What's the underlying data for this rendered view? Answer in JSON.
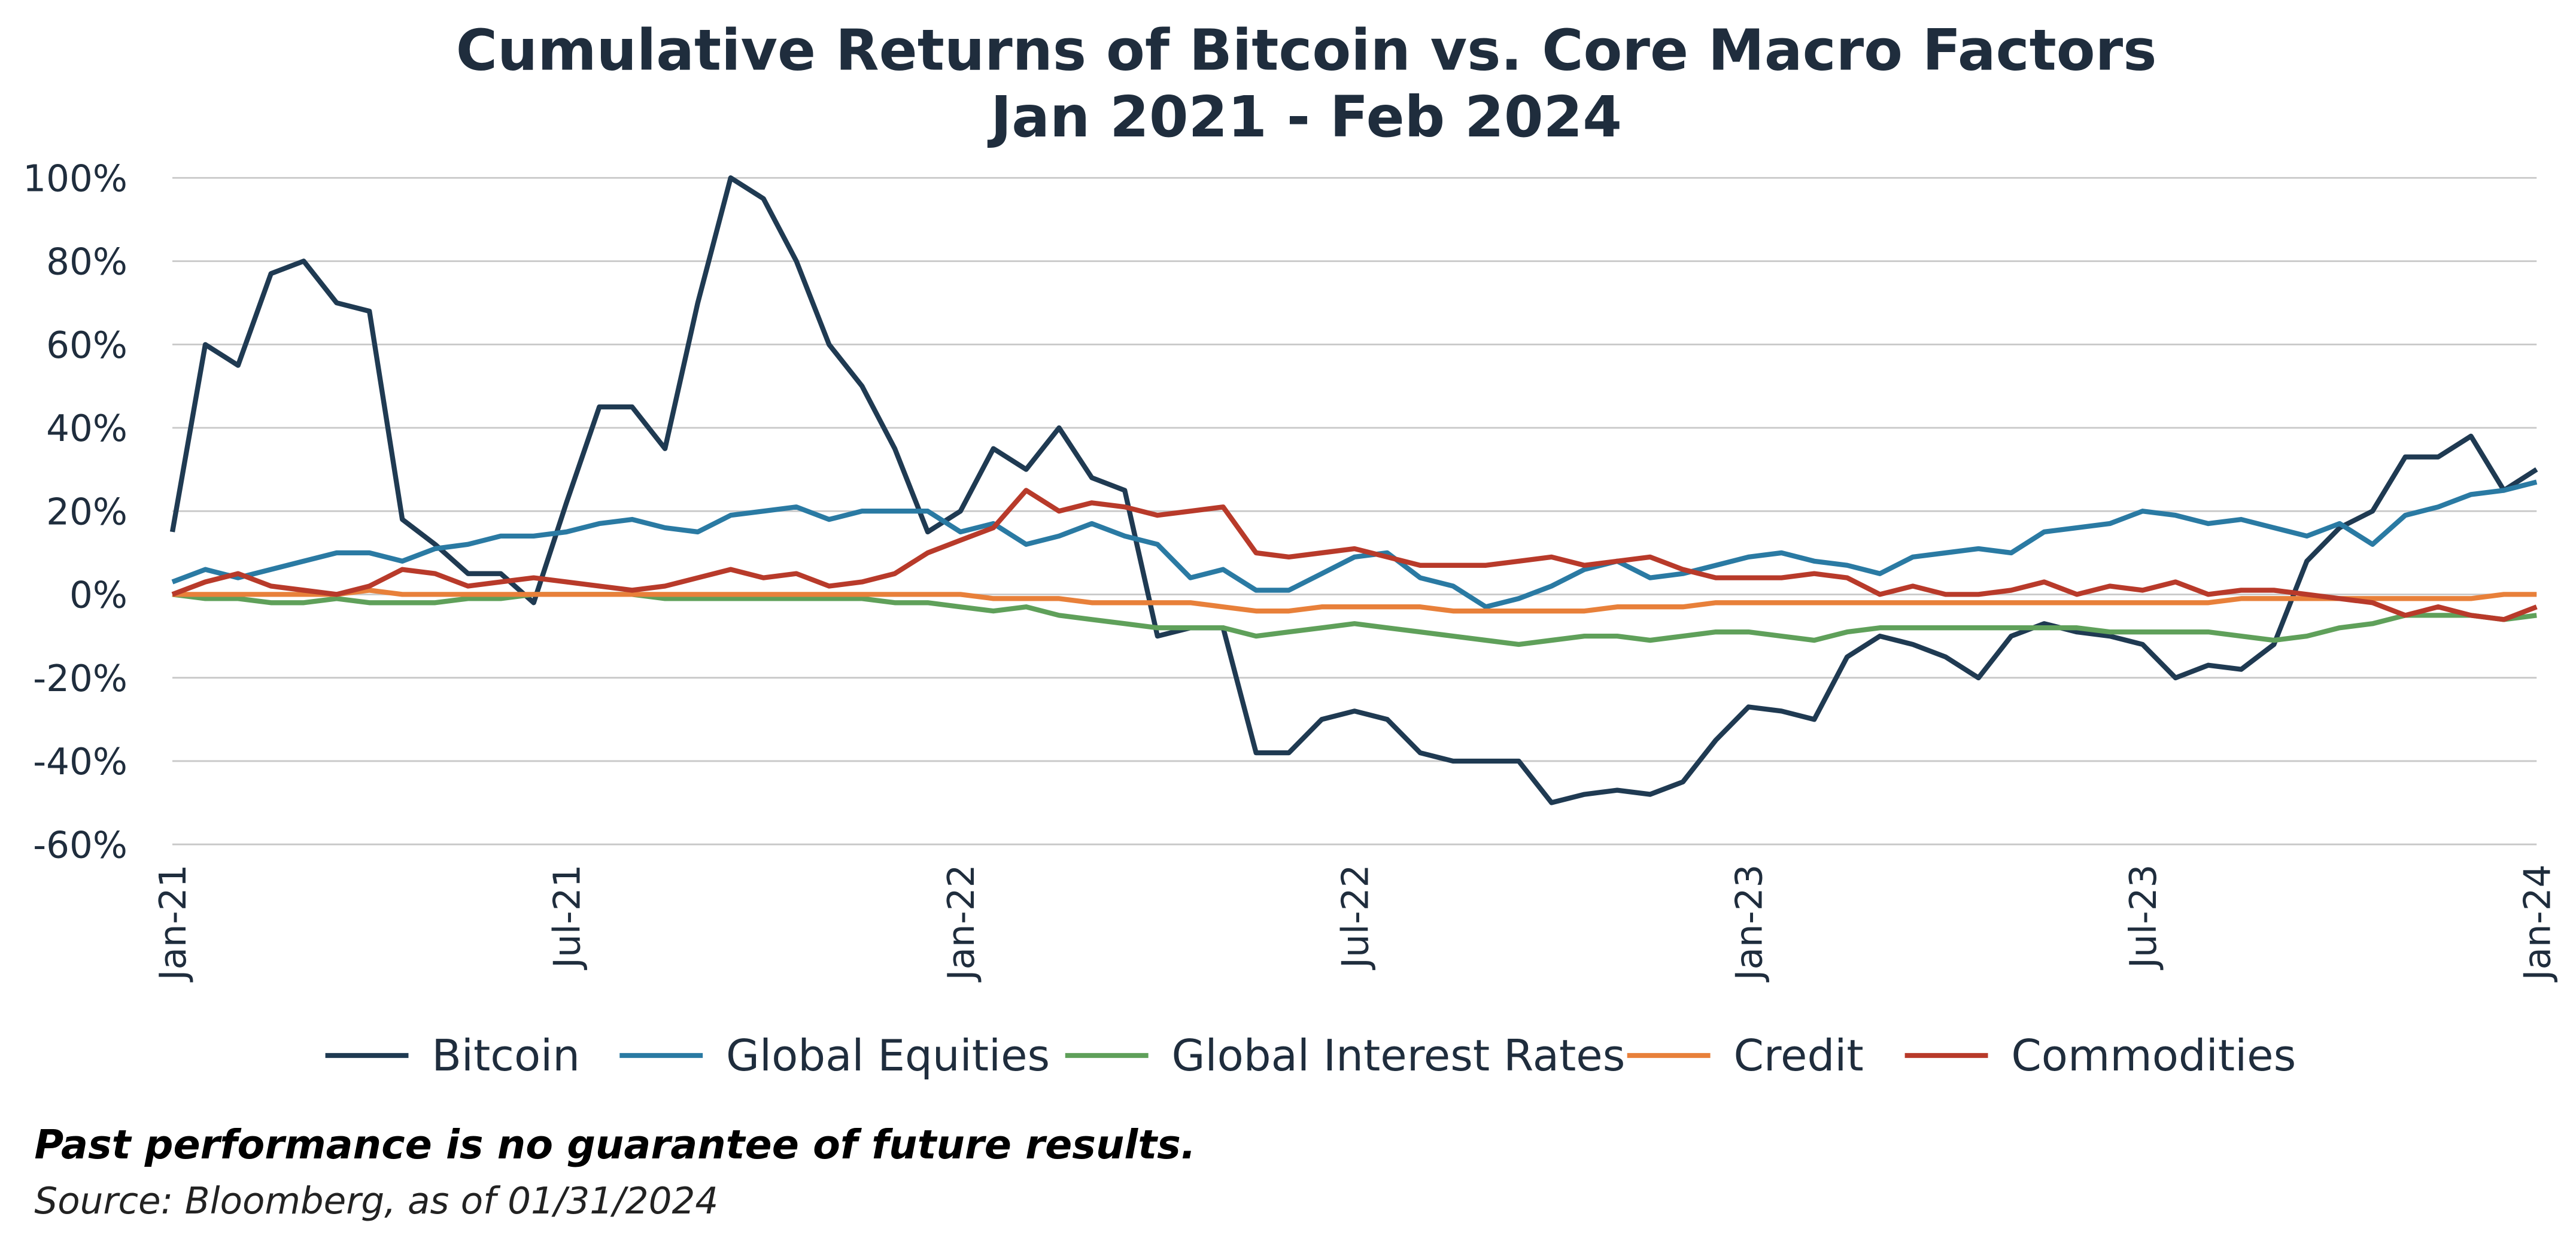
{
  "chart_data": {
    "type": "line",
    "title": "Cumulative Returns of Bitcoin vs. Core Macro Factors",
    "subtitle": "Jan 2021 - Feb 2024",
    "categories": [
      "Jan-21",
      null,
      null,
      null,
      null,
      null,
      null,
      null,
      null,
      null,
      null,
      null,
      "Jul-21",
      null,
      null,
      null,
      null,
      null,
      null,
      null,
      null,
      null,
      null,
      null,
      "Jan-22",
      null,
      null,
      null,
      null,
      null,
      null,
      null,
      null,
      null,
      null,
      null,
      "Jul-22",
      null,
      null,
      null,
      null,
      null,
      null,
      null,
      null,
      null,
      null,
      null,
      "Jan-23",
      null,
      null,
      null,
      null,
      null,
      null,
      null,
      null,
      null,
      null,
      null,
      "Jul-23",
      null,
      null,
      null,
      null,
      null,
      null,
      null,
      null,
      null,
      null,
      null,
      "Jan-24"
    ],
    "series": [
      {
        "name": "Bitcoin",
        "color": "#1f3a52",
        "values": [
          15,
          60,
          55,
          77,
          80,
          70,
          68,
          18,
          12,
          5,
          5,
          -2,
          22,
          45,
          45,
          35,
          70,
          100,
          95,
          80,
          60,
          50,
          35,
          15,
          20,
          35,
          30,
          40,
          28,
          25,
          -10,
          -8,
          -8,
          -38,
          -38,
          -30,
          -28,
          -30,
          -38,
          -40,
          -40,
          -40,
          -50,
          -48,
          -47,
          -48,
          -45,
          -35,
          -27,
          -28,
          -30,
          -15,
          -10,
          -12,
          -15,
          -20,
          -10,
          -7,
          -9,
          -10,
          -12,
          -20,
          -17,
          -18,
          -12,
          8,
          16,
          20,
          33,
          33,
          38,
          25,
          30
        ]
      },
      {
        "name": "Global Equities",
        "color": "#2a7aa3",
        "values": [
          3,
          6,
          4,
          6,
          8,
          10,
          10,
          8,
          11,
          12,
          14,
          14,
          15,
          17,
          18,
          16,
          15,
          19,
          20,
          21,
          18,
          20,
          20,
          20,
          15,
          17,
          12,
          14,
          17,
          14,
          12,
          4,
          6,
          1,
          1,
          5,
          9,
          10,
          4,
          2,
          -3,
          -1,
          2,
          6,
          8,
          4,
          5,
          7,
          9,
          10,
          8,
          7,
          5,
          9,
          10,
          11,
          10,
          15,
          16,
          17,
          20,
          19,
          17,
          18,
          16,
          14,
          17,
          12,
          19,
          21,
          24,
          25,
          27
        ]
      },
      {
        "name": "Global Interest Rates",
        "color": "#5fa05a",
        "values": [
          0,
          -1,
          -1,
          -2,
          -2,
          -1,
          -2,
          -2,
          -2,
          -1,
          -1,
          0,
          0,
          0,
          0,
          -1,
          -1,
          -1,
          -1,
          -1,
          -1,
          -1,
          -2,
          -2,
          -3,
          -4,
          -3,
          -5,
          -6,
          -7,
          -8,
          -8,
          -8,
          -10,
          -9,
          -8,
          -7,
          -8,
          -9,
          -10,
          -11,
          -12,
          -11,
          -10,
          -10,
          -11,
          -10,
          -9,
          -9,
          -10,
          -11,
          -9,
          -8,
          -8,
          -8,
          -8,
          -8,
          -8,
          -8,
          -9,
          -9,
          -9,
          -9,
          -10,
          -11,
          -10,
          -8,
          -7,
          -5,
          -5,
          -5,
          -6,
          -5
        ]
      },
      {
        "name": "Credit",
        "color": "#e8803a",
        "values": [
          0,
          0,
          0,
          0,
          0,
          0,
          1,
          0,
          0,
          0,
          0,
          0,
          0,
          0,
          0,
          0,
          0,
          0,
          0,
          0,
          0,
          0,
          0,
          0,
          0,
          -1,
          -1,
          -1,
          -2,
          -2,
          -2,
          -2,
          -3,
          -4,
          -4,
          -3,
          -3,
          -3,
          -3,
          -4,
          -4,
          -4,
          -4,
          -4,
          -3,
          -3,
          -3,
          -2,
          -2,
          -2,
          -2,
          -2,
          -2,
          -2,
          -2,
          -2,
          -2,
          -2,
          -2,
          -2,
          -2,
          -2,
          -2,
          -1,
          -1,
          -1,
          -1,
          -1,
          -1,
          -1,
          -1,
          0,
          0
        ]
      },
      {
        "name": "Commodities",
        "color": "#b83a2a",
        "values": [
          0,
          3,
          5,
          2,
          1,
          0,
          2,
          6,
          5,
          2,
          3,
          4,
          3,
          2,
          1,
          2,
          4,
          6,
          4,
          5,
          2,
          3,
          5,
          10,
          13,
          16,
          25,
          20,
          22,
          21,
          19,
          20,
          21,
          10,
          9,
          10,
          11,
          9,
          7,
          7,
          7,
          8,
          9,
          7,
          8,
          9,
          6,
          4,
          4,
          4,
          5,
          4,
          0,
          2,
          0,
          0,
          1,
          3,
          0,
          2,
          1,
          3,
          0,
          1,
          1,
          0,
          -1,
          -2,
          -5,
          -3,
          -5,
          -6,
          -3
        ]
      }
    ],
    "ylim": [
      -60,
      100
    ],
    "yticks": [
      {
        "value": -60,
        "label": "-60%"
      },
      {
        "value": -40,
        "label": "-40%"
      },
      {
        "value": -20,
        "label": "-20%"
      },
      {
        "value": 0,
        "label": "0%"
      },
      {
        "value": 20,
        "label": "20%"
      },
      {
        "value": 40,
        "label": "40%"
      },
      {
        "value": 60,
        "label": "60%"
      },
      {
        "value": 80,
        "label": "80%"
      },
      {
        "value": 100,
        "label": "100%"
      }
    ],
    "grid": true,
    "legend": "bottom",
    "footnote": "Past performance is no guarantee of future results.",
    "source": "Source: Bloomberg, as of 01/31/2024"
  }
}
